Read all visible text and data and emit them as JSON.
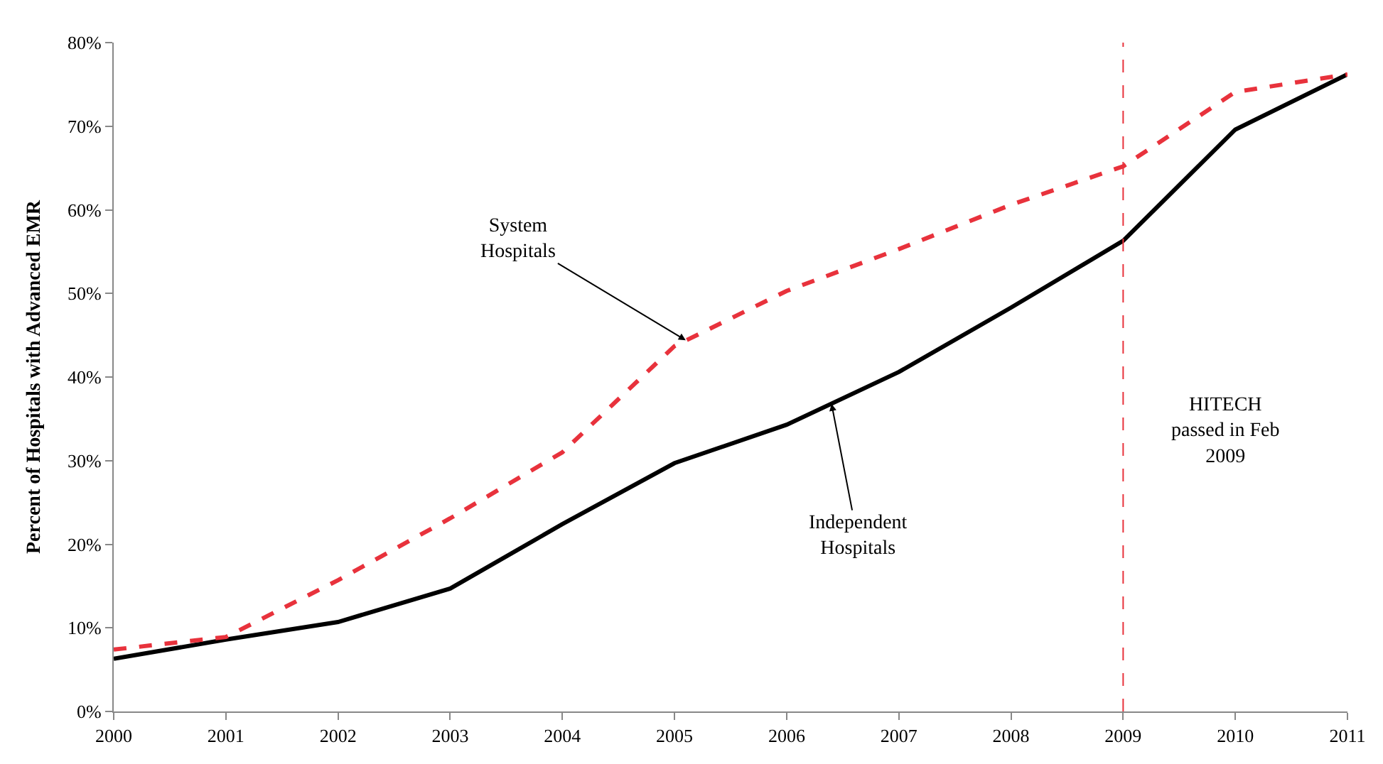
{
  "chart_data": {
    "type": "line",
    "ylabel": "Percent of Hospitals with Advanced EMR",
    "x": [
      2000,
      2001,
      2002,
      2003,
      2004,
      2005,
      2006,
      2007,
      2008,
      2009,
      2010,
      2011
    ],
    "series": [
      {
        "color": "#000000",
        "line_style": "solid",
        "values": [
          6.3,
          8.6,
          10.7,
          14.7,
          22.4,
          29.7,
          34.3,
          40.6,
          48.3,
          56.3,
          69.6,
          76.2
        ]
      },
      {
        "color": "#e8323c",
        "line_style": "dashed",
        "values": [
          7.4,
          8.9,
          15.7,
          23.1,
          31.0,
          43.7,
          50.3,
          55.3,
          60.6,
          65.2,
          74.1,
          76.2
        ]
      }
    ],
    "xlim": [
      2000,
      2011
    ],
    "xticks": [
      2000,
      2001,
      2002,
      2003,
      2004,
      2005,
      2006,
      2007,
      2008,
      2009,
      2010,
      2011
    ],
    "ylim": [
      0,
      80
    ],
    "yticks": [
      {
        "value": 0,
        "label": "0%"
      },
      {
        "value": 10,
        "label": "10%"
      },
      {
        "value": 20,
        "label": "20%"
      },
      {
        "value": 30,
        "label": "30%"
      },
      {
        "value": 40,
        "label": "40%"
      },
      {
        "value": 50,
        "label": "50%"
      },
      {
        "value": 60,
        "label": "60%"
      },
      {
        "value": 70,
        "label": "70%"
      },
      {
        "value": 80,
        "label": "80%"
      }
    ],
    "ref_lines": [
      {
        "axis": "x",
        "value": 2009,
        "label": "HITECH\npassed in Feb\n2009",
        "color": "#e8323c",
        "line_style": "dashed"
      }
    ],
    "annotations": [
      {
        "text": "System\nHospitals",
        "x": 2005.1,
        "y": 44.4
      },
      {
        "text": "Independent\nHospitals",
        "x": 2006.4,
        "y": 36.8
      }
    ],
    "grid": false,
    "marker": "none"
  }
}
